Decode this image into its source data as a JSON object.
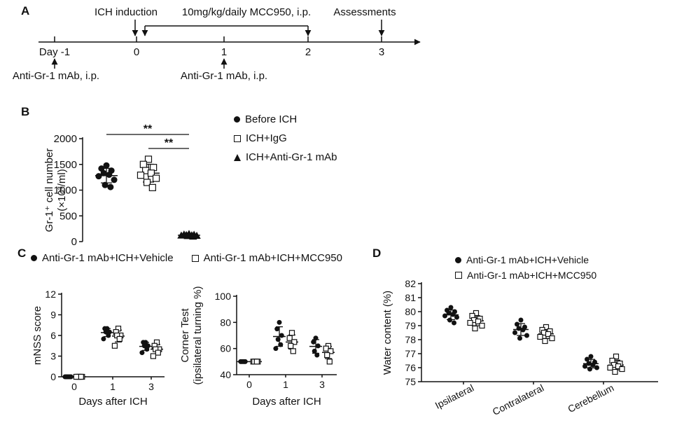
{
  "panelA": {
    "label": "A",
    "top_labels": {
      "ich_induction": "ICH induction",
      "mcc950": "10mg/kg/daily MCC950, i.p.",
      "assessments": "Assessments"
    },
    "timeline_ticks": [
      "Day -1",
      "0",
      "1",
      "2",
      "3"
    ],
    "bottom_labels": {
      "anti_gr1_left": "Anti-Gr-1 mAb, i.p.",
      "anti_gr1_mid": "Anti-Gr-1 mAb, i.p."
    }
  },
  "panelB": {
    "label": "B",
    "legend": [
      {
        "marker": "circle-filled",
        "label": "Before ICH"
      },
      {
        "marker": "square-open",
        "label": "ICH+IgG"
      },
      {
        "marker": "triangle-filled",
        "label": "ICH+Anti-Gr-1 mAb"
      }
    ]
  },
  "panelC": {
    "label": "C",
    "legend": [
      {
        "marker": "circle-filled",
        "label": "Anti-Gr-1 mAb+ICH+Vehicle"
      },
      {
        "marker": "square-open",
        "label": "Anti-Gr-1 mAb+ICH+MCC950"
      }
    ]
  },
  "panelD": {
    "label": "D",
    "legend": [
      {
        "marker": "circle-filled",
        "label": "Anti-Gr-1 mAb+ICH+Vehicle"
      },
      {
        "marker": "square-open",
        "label": "Anti-Gr-1 mAb+ICH+MCC950"
      }
    ]
  },
  "chart_data": [
    {
      "id": "chart-gr1",
      "type": "scatter",
      "ylabel_lines": [
        "Gr-1⁺ cell number",
        "(×10³/ml)"
      ],
      "ylim": [
        0,
        2000
      ],
      "yticks": [
        0,
        500,
        1000,
        1500,
        2000
      ],
      "groups": [
        {
          "name": "Before ICH",
          "marker": "circle-filled",
          "values": [
            1480,
            1420,
            1380,
            1330,
            1300,
            1270,
            1200,
            1100,
            1060
          ]
        },
        {
          "name": "ICH+IgG",
          "marker": "square-open",
          "values": [
            1600,
            1500,
            1440,
            1380,
            1330,
            1290,
            1230,
            1150,
            1050
          ]
        },
        {
          "name": "ICH+Anti-Gr-1 mAb",
          "marker": "triangle-filled",
          "values": [
            150,
            140,
            135,
            130,
            125,
            120,
            115,
            110,
            100
          ]
        }
      ],
      "significance": [
        {
          "group_a": 0,
          "group_b": 2,
          "label": "**"
        },
        {
          "group_a": 1,
          "group_b": 2,
          "label": "**"
        }
      ]
    },
    {
      "id": "chart-mnss",
      "type": "scatter",
      "ylabel_lines": [
        "mNSS score"
      ],
      "xlabel": "Days after ICH",
      "ylim": [
        0,
        12
      ],
      "yticks": [
        0,
        3,
        6,
        9,
        12
      ],
      "categories": [
        "0",
        "1",
        "3"
      ],
      "series": [
        {
          "name": "Anti-Gr-1 mAb+ICH+Vehicle",
          "marker": "circle-filled",
          "values": [
            [
              0,
              0,
              0,
              0,
              0,
              0
            ],
            [
              7,
              7,
              6.5,
              6.5,
              6,
              5.5
            ],
            [
              5,
              5,
              4.5,
              4.5,
              4,
              3.5
            ]
          ]
        },
        {
          "name": "Anti-Gr-1 mAb+ICH+MCC950",
          "marker": "square-open",
          "values": [
            [
              0,
              0,
              0,
              0,
              0,
              0
            ],
            [
              7,
              6.5,
              6,
              6,
              5.5,
              4.5
            ],
            [
              5,
              4.5,
              4,
              4,
              3.5,
              3
            ]
          ]
        }
      ]
    },
    {
      "id": "chart-corner",
      "type": "scatter",
      "ylabel_lines": [
        "Corner Test",
        "(ipsilateral turning %)"
      ],
      "xlabel": "Days after ICH",
      "ylim": [
        40,
        100
      ],
      "yticks": [
        40,
        60,
        80,
        100
      ],
      "categories": [
        "0",
        "1",
        "3"
      ],
      "series": [
        {
          "name": "Anti-Gr-1 mAb+ICH+Vehicle",
          "marker": "circle-filled",
          "values": [
            [
              50,
              50,
              50,
              50,
              50
            ],
            [
              80,
              75,
              70,
              67,
              63,
              60
            ],
            [
              68,
              65,
              62,
              58,
              55
            ]
          ]
        },
        {
          "name": "Anti-Gr-1 mAb+ICH+MCC950",
          "marker": "square-open",
          "values": [
            [
              50,
              50,
              50,
              50,
              50
            ],
            [
              72,
              68,
              65,
              62,
              58
            ],
            [
              62,
              60,
              58,
              55,
              50
            ]
          ]
        }
      ]
    },
    {
      "id": "chart-water",
      "type": "scatter",
      "ylabel_lines": [
        "Water content (%)"
      ],
      "ylim": [
        75,
        82
      ],
      "yticks": [
        75,
        76,
        77,
        78,
        79,
        80,
        81,
        82
      ],
      "categories": [
        "Ipsilateral",
        "Contralateral",
        "Cerebellum"
      ],
      "series": [
        {
          "name": "Anti-Gr-1 mAb+ICH+Vehicle",
          "marker": "circle-filled",
          "values": [
            [
              80.3,
              80.1,
              80.0,
              79.9,
              79.8,
              79.7,
              79.6,
              79.4,
              79.2
            ],
            [
              79.4,
              79.1,
              78.9,
              78.8,
              78.7,
              78.5,
              78.3,
              78.1
            ],
            [
              76.8,
              76.6,
              76.4,
              76.3,
              76.2,
              76.1,
              76.0,
              75.9
            ]
          ]
        },
        {
          "name": "Anti-Gr-1 mAb+ICH+MCC950",
          "marker": "square-open",
          "values": [
            [
              79.9,
              79.7,
              79.5,
              79.4,
              79.3,
              79.2,
              79.0,
              78.8
            ],
            [
              78.9,
              78.7,
              78.6,
              78.5,
              78.4,
              78.2,
              78.1,
              77.9
            ],
            [
              76.8,
              76.5,
              76.3,
              76.2,
              76.1,
              76.0,
              75.9,
              75.7
            ]
          ]
        }
      ]
    }
  ]
}
